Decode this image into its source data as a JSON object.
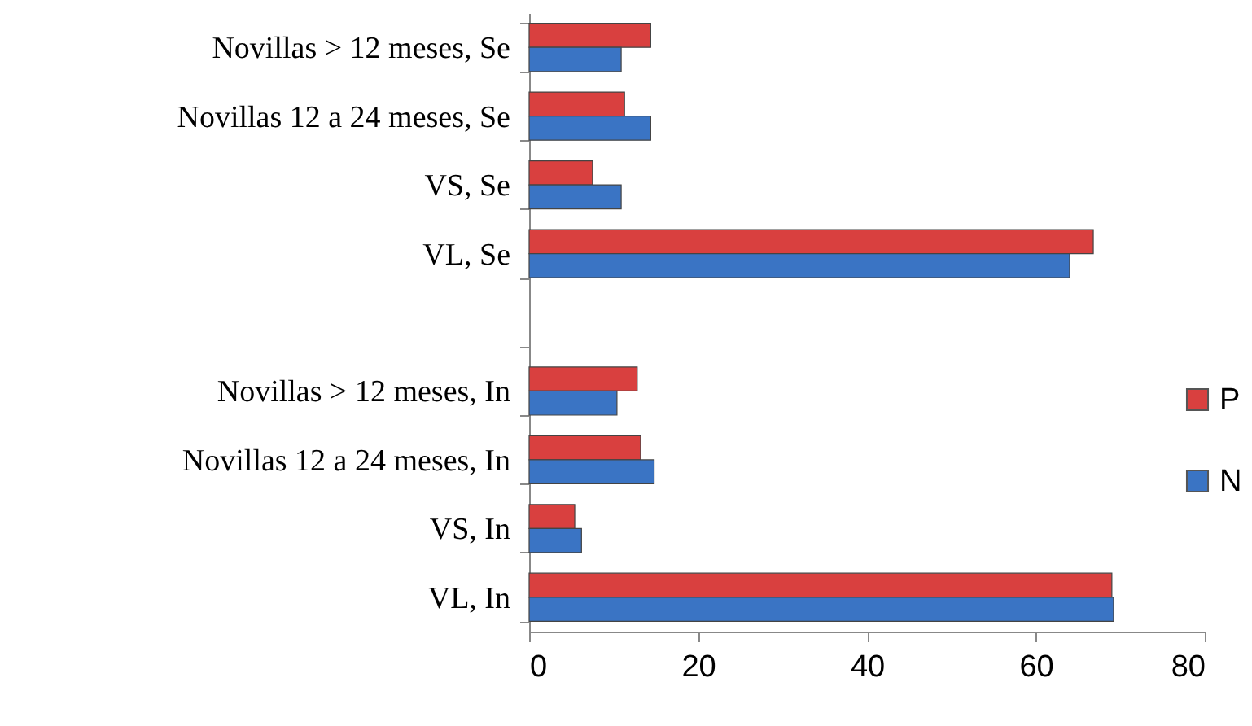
{
  "chart_data": {
    "type": "bar",
    "orientation": "horizontal",
    "categories": [
      "Novillas > 12 meses, Se",
      "Novillas 12 a 24 meses, Se",
      "VS, Se",
      "VL, Se",
      null,
      "Novillas > 12 meses, In",
      "Novillas 12 a 24 meses, In",
      "VS, In",
      "VL, In"
    ],
    "series": [
      {
        "name": "P",
        "color": "#d9403f",
        "values": [
          14.4,
          11.3,
          7.5,
          66.8,
          null,
          12.8,
          13.2,
          5.4,
          69.0
        ]
      },
      {
        "name": "N",
        "color": "#3a74c4",
        "values": [
          10.9,
          14.4,
          10.9,
          64.0,
          null,
          10.4,
          14.8,
          6.2,
          69.2
        ]
      }
    ],
    "xlim": [
      0,
      80
    ],
    "xticks": [
      0,
      20,
      40,
      60,
      80
    ],
    "grid": false,
    "legend": "right"
  }
}
